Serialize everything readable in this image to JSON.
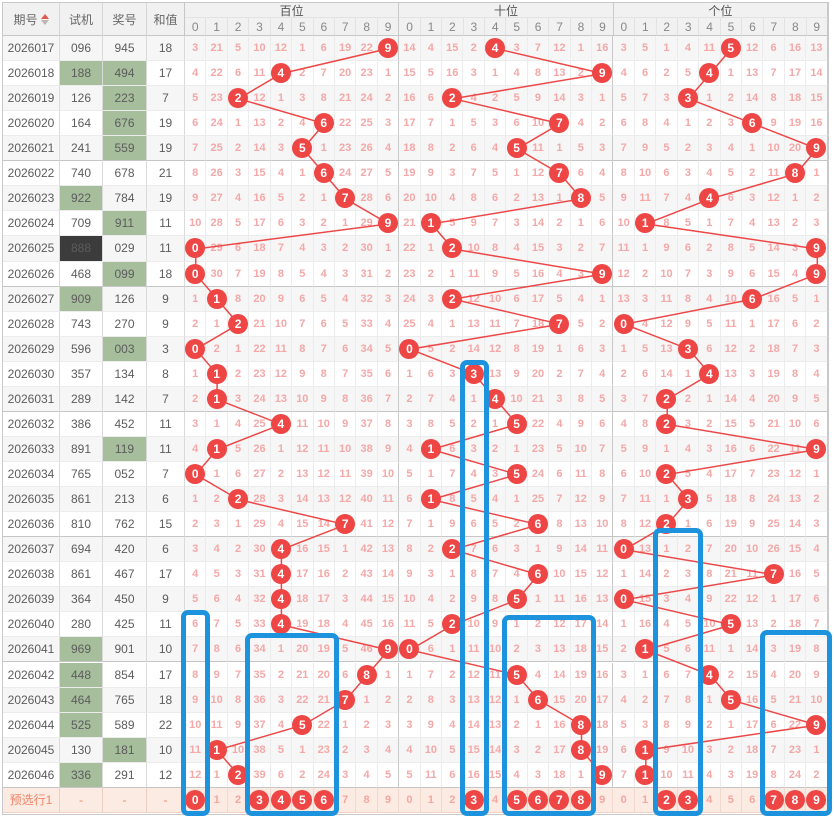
{
  "header": {
    "period": "期号",
    "test": "试机",
    "prize": "奖号",
    "sum": "和值",
    "sections": [
      "百位",
      "十位",
      "个位"
    ],
    "digit_labels": [
      "0",
      "1",
      "2",
      "3",
      "4",
      "5",
      "6",
      "7",
      "8",
      "9"
    ]
  },
  "rows": [
    {
      "period": "2026017",
      "test": "096",
      "prize": "945",
      "sum": "18",
      "tHl": "",
      "pHl": "",
      "bai": [
        3,
        21,
        5,
        10,
        12,
        1,
        6,
        19,
        22,
        9
      ],
      "baiHit": 9,
      "shi": [
        14,
        4,
        15,
        2,
        4,
        3,
        7,
        12,
        1,
        16
      ],
      "shiHit": 4,
      "ge": [
        3,
        5,
        1,
        4,
        11,
        5,
        12,
        6,
        16,
        13
      ],
      "geHit": 5
    },
    {
      "period": "2026018",
      "test": "188",
      "prize": "494",
      "sum": "17",
      "tHl": "green",
      "pHl": "green",
      "bai": [
        4,
        22,
        6,
        11,
        4,
        2,
        7,
        20,
        23,
        1
      ],
      "baiHit": 4,
      "shi": [
        15,
        5,
        16,
        3,
        1,
        4,
        8,
        13,
        2,
        9
      ],
      "shiHit": 9,
      "ge": [
        4,
        6,
        2,
        5,
        4,
        1,
        13,
        7,
        17,
        14
      ],
      "geHit": 4
    },
    {
      "period": "2026019",
      "test": "126",
      "prize": "223",
      "sum": "7",
      "tHl": "",
      "pHl": "green",
      "bai": [
        5,
        23,
        2,
        12,
        1,
        3,
        8,
        21,
        24,
        2
      ],
      "baiHit": 2,
      "shi": [
        16,
        6,
        2,
        4,
        2,
        5,
        9,
        14,
        3,
        1
      ],
      "shiHit": 2,
      "ge": [
        5,
        7,
        3,
        3,
        1,
        2,
        14,
        8,
        18,
        15
      ],
      "geHit": 3
    },
    {
      "period": "2026020",
      "test": "164",
      "prize": "676",
      "sum": "19",
      "tHl": "",
      "pHl": "green",
      "bai": [
        6,
        24,
        1,
        13,
        2,
        4,
        6,
        22,
        25,
        3
      ],
      "baiHit": 6,
      "shi": [
        17,
        7,
        1,
        5,
        3,
        6,
        10,
        7,
        4,
        2
      ],
      "shiHit": 7,
      "ge": [
        6,
        8,
        4,
        1,
        2,
        3,
        6,
        9,
        19,
        16
      ],
      "geHit": 6
    },
    {
      "period": "2026021",
      "test": "241",
      "prize": "559",
      "sum": "19",
      "tHl": "",
      "pHl": "green",
      "bai": [
        7,
        25,
        2,
        14,
        3,
        5,
        1,
        23,
        26,
        4
      ],
      "baiHit": 5,
      "shi": [
        18,
        8,
        2,
        6,
        4,
        5,
        11,
        1,
        5,
        3
      ],
      "shiHit": 5,
      "ge": [
        7,
        9,
        5,
        2,
        3,
        4,
        1,
        10,
        20,
        9
      ],
      "geHit": 9
    },
    {
      "period": "2026022",
      "test": "740",
      "prize": "678",
      "sum": "21",
      "tHl": "",
      "pHl": "",
      "bai": [
        8,
        26,
        3,
        15,
        4,
        1,
        6,
        24,
        27,
        5
      ],
      "baiHit": 6,
      "shi": [
        19,
        9,
        3,
        7,
        5,
        1,
        12,
        7,
        6,
        4
      ],
      "shiHit": 7,
      "ge": [
        8,
        10,
        6,
        3,
        4,
        5,
        2,
        11,
        8,
        1
      ],
      "geHit": 8
    },
    {
      "period": "2026023",
      "test": "922",
      "prize": "784",
      "sum": "19",
      "tHl": "green",
      "pHl": "",
      "bai": [
        9,
        27,
        4,
        16,
        5,
        2,
        1,
        7,
        28,
        6
      ],
      "baiHit": 7,
      "shi": [
        20,
        10,
        4,
        8,
        6,
        2,
        13,
        1,
        8,
        5
      ],
      "shiHit": 8,
      "ge": [
        9,
        11,
        7,
        4,
        4,
        6,
        3,
        12,
        1,
        2
      ],
      "geHit": 4
    },
    {
      "period": "2026024",
      "test": "709",
      "prize": "911",
      "sum": "11",
      "tHl": "",
      "pHl": "green",
      "bai": [
        10,
        28,
        5,
        17,
        6,
        3,
        2,
        1,
        29,
        9
      ],
      "baiHit": 9,
      "shi": [
        21,
        1,
        5,
        9,
        7,
        3,
        14,
        2,
        1,
        6
      ],
      "shiHit": 1,
      "ge": [
        10,
        1,
        8,
        5,
        1,
        7,
        4,
        13,
        2,
        3
      ],
      "geHit": 1
    },
    {
      "period": "2026025",
      "test": "888",
      "prize": "029",
      "sum": "11",
      "tHl": "dark",
      "pHl": "",
      "bai": [
        0,
        29,
        6,
        18,
        7,
        4,
        3,
        2,
        30,
        1
      ],
      "baiHit": 0,
      "shi": [
        22,
        1,
        2,
        10,
        8,
        4,
        15,
        3,
        2,
        7
      ],
      "shiHit": 2,
      "ge": [
        11,
        1,
        9,
        6,
        2,
        8,
        5,
        14,
        3,
        9
      ],
      "geHit": 9
    },
    {
      "period": "2026026",
      "test": "468",
      "prize": "099",
      "sum": "18",
      "tHl": "",
      "pHl": "green",
      "bai": [
        0,
        30,
        7,
        19,
        8,
        5,
        4,
        3,
        31,
        2
      ],
      "baiHit": 0,
      "shi": [
        23,
        2,
        1,
        11,
        9,
        5,
        16,
        4,
        3,
        9
      ],
      "shiHit": 9,
      "ge": [
        12,
        2,
        10,
        7,
        3,
        9,
        6,
        15,
        4,
        9
      ],
      "geHit": 9
    },
    {
      "period": "2026027",
      "test": "909",
      "prize": "126",
      "sum": "9",
      "tHl": "green",
      "pHl": "",
      "bai": [
        1,
        1,
        8,
        20,
        9,
        6,
        5,
        4,
        32,
        3
      ],
      "baiHit": 1,
      "shi": [
        24,
        3,
        2,
        12,
        10,
        6,
        17,
        5,
        4,
        1
      ],
      "shiHit": 2,
      "ge": [
        13,
        3,
        11,
        8,
        4,
        10,
        6,
        16,
        5,
        1
      ],
      "geHit": 6
    },
    {
      "period": "2026028",
      "test": "743",
      "prize": "270",
      "sum": "9",
      "tHl": "",
      "pHl": "",
      "bai": [
        2,
        1,
        2,
        21,
        10,
        7,
        6,
        5,
        33,
        4
      ],
      "baiHit": 2,
      "shi": [
        25,
        4,
        1,
        13,
        11,
        7,
        18,
        7,
        5,
        2
      ],
      "shiHit": 7,
      "ge": [
        0,
        4,
        12,
        9,
        5,
        11,
        1,
        17,
        6,
        2
      ],
      "geHit": 0
    },
    {
      "period": "2026029",
      "test": "596",
      "prize": "003",
      "sum": "3",
      "tHl": "",
      "pHl": "green",
      "bai": [
        0,
        2,
        1,
        22,
        11,
        8,
        7,
        6,
        34,
        5
      ],
      "baiHit": 0,
      "shi": [
        0,
        5,
        2,
        14,
        12,
        8,
        19,
        1,
        6,
        3
      ],
      "shiHit": 0,
      "ge": [
        1,
        5,
        13,
        3,
        6,
        12,
        2,
        18,
        7,
        3
      ],
      "geHit": 3
    },
    {
      "period": "2026030",
      "test": "357",
      "prize": "134",
      "sum": "8",
      "tHl": "",
      "pHl": "",
      "bai": [
        1,
        1,
        2,
        23,
        12,
        9,
        8,
        7,
        35,
        6
      ],
      "baiHit": 1,
      "shi": [
        1,
        6,
        3,
        3,
        13,
        9,
        20,
        2,
        7,
        4
      ],
      "shiHit": 3,
      "ge": [
        2,
        6,
        14,
        1,
        4,
        13,
        3,
        19,
        8,
        4
      ],
      "geHit": 4
    },
    {
      "period": "2026031",
      "test": "289",
      "prize": "142",
      "sum": "7",
      "tHl": "",
      "pHl": "",
      "bai": [
        2,
        1,
        3,
        24,
        13,
        10,
        9,
        8,
        36,
        7
      ],
      "baiHit": 1,
      "shi": [
        2,
        7,
        4,
        1,
        4,
        10,
        21,
        3,
        8,
        5
      ],
      "shiHit": 4,
      "ge": [
        3,
        7,
        2,
        2,
        1,
        14,
        4,
        20,
        9,
        5
      ],
      "geHit": 2
    },
    {
      "period": "2026032",
      "test": "386",
      "prize": "452",
      "sum": "11",
      "tHl": "",
      "pHl": "",
      "bai": [
        3,
        1,
        4,
        25,
        4,
        11,
        10,
        9,
        37,
        8
      ],
      "baiHit": 4,
      "shi": [
        3,
        8,
        5,
        2,
        1,
        5,
        22,
        4,
        9,
        6
      ],
      "shiHit": 5,
      "ge": [
        4,
        8,
        2,
        3,
        2,
        15,
        5,
        21,
        10,
        6
      ],
      "geHit": 2
    },
    {
      "period": "2026033",
      "test": "891",
      "prize": "119",
      "sum": "11",
      "tHl": "",
      "pHl": "green",
      "bai": [
        4,
        1,
        5,
        26,
        1,
        12,
        11,
        10,
        38,
        9
      ],
      "baiHit": 1,
      "shi": [
        4,
        1,
        6,
        3,
        2,
        1,
        23,
        5,
        10,
        7
      ],
      "shiHit": 1,
      "ge": [
        5,
        9,
        1,
        4,
        3,
        16,
        6,
        22,
        11,
        9
      ],
      "geHit": 9
    },
    {
      "period": "2026034",
      "test": "765",
      "prize": "052",
      "sum": "7",
      "tHl": "",
      "pHl": "",
      "bai": [
        0,
        1,
        6,
        27,
        2,
        13,
        12,
        11,
        39,
        10
      ],
      "baiHit": 0,
      "shi": [
        5,
        1,
        7,
        4,
        3,
        5,
        24,
        6,
        11,
        8
      ],
      "shiHit": 5,
      "ge": [
        6,
        10,
        2,
        5,
        4,
        17,
        7,
        23,
        12,
        1
      ],
      "geHit": 2
    },
    {
      "period": "2026035",
      "test": "861",
      "prize": "213",
      "sum": "6",
      "tHl": "",
      "pHl": "",
      "bai": [
        1,
        2,
        2,
        28,
        3,
        14,
        13,
        12,
        40,
        11
      ],
      "baiHit": 2,
      "shi": [
        6,
        1,
        8,
        5,
        4,
        1,
        25,
        7,
        12,
        9
      ],
      "shiHit": 1,
      "ge": [
        7,
        11,
        1,
        3,
        5,
        18,
        8,
        24,
        13,
        2
      ],
      "geHit": 3
    },
    {
      "period": "2026036",
      "test": "810",
      "prize": "762",
      "sum": "15",
      "tHl": "",
      "pHl": "",
      "bai": [
        2,
        3,
        1,
        29,
        4,
        15,
        14,
        7,
        41,
        12
      ],
      "baiHit": 7,
      "shi": [
        7,
        1,
        9,
        6,
        5,
        2,
        6,
        8,
        13,
        10
      ],
      "shiHit": 6,
      "ge": [
        8,
        12,
        2,
        1,
        6,
        19,
        9,
        25,
        14,
        3
      ],
      "geHit": 2
    },
    {
      "period": "2026037",
      "test": "694",
      "prize": "420",
      "sum": "6",
      "tHl": "",
      "pHl": "",
      "bai": [
        3,
        4,
        2,
        30,
        4,
        16,
        15,
        1,
        42,
        13
      ],
      "baiHit": 4,
      "shi": [
        8,
        2,
        2,
        7,
        6,
        3,
        1,
        9,
        14,
        11
      ],
      "shiHit": 2,
      "ge": [
        0,
        13,
        1,
        2,
        7,
        20,
        10,
        26,
        15,
        4
      ],
      "geHit": 0
    },
    {
      "period": "2026038",
      "test": "861",
      "prize": "467",
      "sum": "17",
      "tHl": "",
      "pHl": "",
      "bai": [
        4,
        5,
        3,
        31,
        4,
        17,
        16,
        2,
        43,
        14
      ],
      "baiHit": 4,
      "shi": [
        9,
        3,
        1,
        8,
        7,
        4,
        6,
        10,
        15,
        12
      ],
      "shiHit": 6,
      "ge": [
        1,
        14,
        2,
        3,
        8,
        21,
        11,
        7,
        16,
        5
      ],
      "geHit": 7
    },
    {
      "period": "2026039",
      "test": "364",
      "prize": "450",
      "sum": "9",
      "tHl": "",
      "pHl": "",
      "bai": [
        5,
        6,
        4,
        32,
        4,
        18,
        17,
        3,
        44,
        15
      ],
      "baiHit": 4,
      "shi": [
        10,
        4,
        2,
        9,
        8,
        5,
        1,
        11,
        16,
        13
      ],
      "shiHit": 5,
      "ge": [
        0,
        15,
        3,
        4,
        9,
        22,
        12,
        1,
        17,
        6
      ],
      "geHit": 0
    },
    {
      "period": "2026040",
      "test": "280",
      "prize": "425",
      "sum": "11",
      "tHl": "",
      "pHl": "",
      "bai": [
        6,
        7,
        5,
        33,
        4,
        19,
        18,
        4,
        45,
        16
      ],
      "baiHit": 4,
      "shi": [
        11,
        5,
        2,
        10,
        9,
        1,
        2,
        12,
        17,
        14
      ],
      "shiHit": 2,
      "ge": [
        1,
        16,
        4,
        5,
        10,
        5,
        13,
        2,
        18,
        7
      ],
      "geHit": 5
    },
    {
      "period": "2026041",
      "test": "969",
      "prize": "901",
      "sum": "10",
      "tHl": "green",
      "pHl": "",
      "bai": [
        7,
        8,
        6,
        34,
        1,
        20,
        19,
        5,
        46,
        9
      ],
      "baiHit": 9,
      "shi": [
        0,
        6,
        1,
        11,
        10,
        2,
        3,
        13,
        18,
        15
      ],
      "shiHit": 0,
      "ge": [
        2,
        1,
        5,
        6,
        11,
        1,
        14,
        3,
        19,
        8
      ],
      "geHit": 1
    },
    {
      "period": "2026042",
      "test": "448",
      "prize": "854",
      "sum": "17",
      "tHl": "green",
      "pHl": "",
      "bai": [
        8,
        9,
        7,
        35,
        2,
        21,
        20,
        6,
        8,
        1
      ],
      "baiHit": 8,
      "shi": [
        1,
        7,
        2,
        12,
        11,
        5,
        4,
        14,
        19,
        16
      ],
      "shiHit": 5,
      "ge": [
        3,
        1,
        6,
        7,
        4,
        2,
        15,
        4,
        20,
        9
      ],
      "geHit": 4
    },
    {
      "period": "2026043",
      "test": "464",
      "prize": "765",
      "sum": "18",
      "tHl": "green",
      "pHl": "",
      "bai": [
        9,
        10,
        8,
        36,
        3,
        22,
        21,
        7,
        1,
        2
      ],
      "baiHit": 7,
      "shi": [
        2,
        8,
        3,
        13,
        12,
        1,
        6,
        15,
        20,
        17
      ],
      "shiHit": 6,
      "ge": [
        4,
        2,
        7,
        8,
        1,
        5,
        16,
        5,
        21,
        10
      ],
      "geHit": 5
    },
    {
      "period": "2026044",
      "test": "525",
      "prize": "589",
      "sum": "22",
      "tHl": "green",
      "pHl": "",
      "bai": [
        10,
        11,
        9,
        37,
        4,
        5,
        22,
        1,
        2,
        3
      ],
      "baiHit": 5,
      "shi": [
        3,
        9,
        4,
        14,
        13,
        2,
        1,
        16,
        8,
        18
      ],
      "shiHit": 8,
      "ge": [
        5,
        3,
        8,
        9,
        2,
        1,
        17,
        6,
        22,
        9
      ],
      "geHit": 9
    },
    {
      "period": "2026045",
      "test": "130",
      "prize": "181",
      "sum": "10",
      "tHl": "",
      "pHl": "green",
      "bai": [
        11,
        1,
        10,
        38,
        5,
        1,
        23,
        2,
        3,
        4
      ],
      "baiHit": 1,
      "shi": [
        4,
        10,
        5,
        15,
        14,
        3,
        2,
        17,
        8,
        19
      ],
      "shiHit": 8,
      "ge": [
        6,
        1,
        9,
        10,
        3,
        2,
        18,
        7,
        23,
        1
      ],
      "geHit": 1
    },
    {
      "period": "2026046",
      "test": "336",
      "prize": "291",
      "sum": "12",
      "tHl": "green",
      "pHl": "",
      "bai": [
        12,
        1,
        2,
        39,
        6,
        2,
        24,
        3,
        4,
        5
      ],
      "baiHit": 2,
      "shi": [
        5,
        11,
        6,
        16,
        15,
        4,
        3,
        18,
        1,
        9
      ],
      "shiHit": 9,
      "ge": [
        7,
        1,
        10,
        11,
        4,
        3,
        19,
        8,
        24,
        2
      ],
      "geHit": 1
    }
  ],
  "footer": {
    "label": "预选行1",
    "test": "-",
    "prize": "-",
    "sum": "-",
    "digits": [
      0,
      1,
      2,
      3,
      4,
      5,
      6,
      7,
      8,
      9
    ],
    "hits": [
      [
        0,
        3,
        4,
        5,
        6
      ],
      [
        3,
        5,
        6,
        7,
        8
      ],
      [
        2,
        3,
        7,
        8,
        9
      ]
    ]
  },
  "selection_boxes": [
    {
      "sec": 0,
      "c1": 0,
      "c2": 0,
      "row": 24
    },
    {
      "sec": 0,
      "c1": 3,
      "c2": 6,
      "row": 24.9
    },
    {
      "sec": 1,
      "c1": 3,
      "c2": 3,
      "row": 14
    },
    {
      "sec": 1,
      "c1": 5,
      "c2": 8,
      "row": 24.2
    },
    {
      "sec": 2,
      "c1": 2,
      "c2": 3,
      "row": 20.7
    },
    {
      "sec": 2,
      "c1": 7,
      "c2": 9,
      "row": 24.8
    }
  ],
  "colors": {
    "accent_red": "#ee4545",
    "line_red": "#ed4848",
    "miss_pink": "#f4a8a8",
    "box_blue": "#1e93dd",
    "green_bg": "#a6be9c",
    "dark_bg": "#3c3c3c",
    "footer_bg": "#fcebe3",
    "footer_text": "#f08468",
    "header_bg": "#f1f1f1"
  }
}
